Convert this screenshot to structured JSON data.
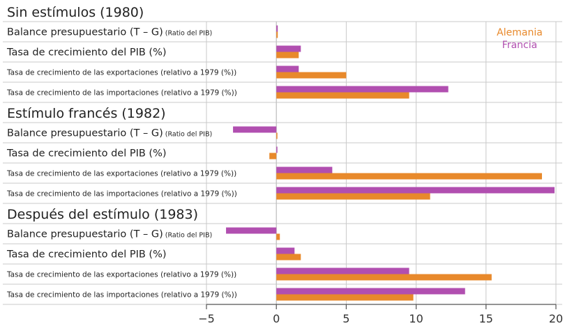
{
  "chart_data": {
    "type": "bar",
    "orientation": "horizontal",
    "legend": {
      "position": "top-right",
      "entries": [
        {
          "name": "Alemania",
          "color": "#E8892B"
        },
        {
          "name": "Francia",
          "color": "#B14FB0"
        }
      ]
    },
    "x_axis": {
      "range": [
        -5,
        20
      ],
      "ticks": [
        -5,
        0,
        5,
        10,
        15,
        20
      ],
      "tick_labels": [
        "−5",
        "0",
        "5",
        "10",
        "15",
        "20"
      ],
      "grid": true
    },
    "panels": [
      {
        "title": "Sin estímulos (1980)",
        "rows": [
          {
            "label": "Balance presupuestario",
            "label_extra": "  (T – G)",
            "label_note": " (Ratio del PIB)",
            "size": "large",
            "francia": 0.1,
            "alemania": 0.1
          },
          {
            "label": "Tasa de crecimiento del PIB (%)",
            "size": "large",
            "francia": 1.75,
            "alemania": 1.6
          },
          {
            "label": "Tasa de crecimiento de las exportaciones (relativo a 1979 (%))",
            "size": "small",
            "francia": 1.6,
            "alemania": 5.0
          },
          {
            "label": "Tasa de crecimiento de las importaciones (relativo a 1979 (%))",
            "size": "small",
            "francia": 12.3,
            "alemania": 9.5
          }
        ]
      },
      {
        "title": "Estímulo francés (1982)",
        "rows": [
          {
            "label": "Balance presupuestario",
            "label_extra": " (T – G)",
            "label_note": " (Ratio del PIB)",
            "size": "large",
            "francia": -3.1,
            "alemania": 0.05
          },
          {
            "label": "Tasa de crecimiento del PIB (%)",
            "size": "large",
            "francia": 0.05,
            "alemania": -0.5
          },
          {
            "label": "Tasa de crecimiento de las exportaciones (relativo a 1979 (%))",
            "size": "small",
            "francia": 4.0,
            "alemania": 19.0
          },
          {
            "label": "Tasa de crecimiento de las importaciones (relativo a 1979 (%))",
            "size": "small",
            "francia": 19.9,
            "alemania": 11.0
          }
        ]
      },
      {
        "title": "Después del estímulo (1983)",
        "rows": [
          {
            "label": "Balance presupuestario",
            "label_extra": "  (T – G)",
            "label_note": " (Ratio del PIB)",
            "size": "large",
            "francia": -3.6,
            "alemania": 0.25
          },
          {
            "label": "Tasa de crecimiento del PIB (%)",
            "size": "large",
            "francia": 1.3,
            "alemania": 1.75
          },
          {
            "label": "Tasa de crecimiento de las exportaciones (relativo a 1979 (%))",
            "size": "small",
            "francia": 9.5,
            "alemania": 15.4
          },
          {
            "label": "Tasa de crecimiento de las importaciones (relativo a 1979 (%))",
            "size": "small",
            "francia": 13.5,
            "alemania": 9.8
          }
        ]
      }
    ]
  }
}
